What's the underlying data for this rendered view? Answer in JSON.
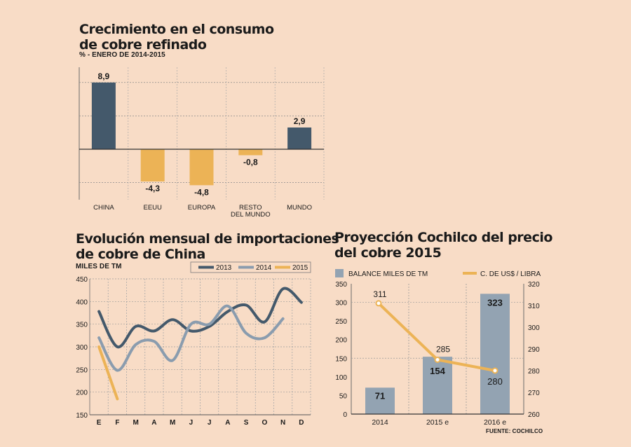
{
  "chart1": {
    "title_line1": "Crecimiento en el consumo",
    "title_line2": "de cobre refinado",
    "subtitle": "% - ENERO DE 2014-2015"
  },
  "chart2": {
    "title_line1": "Evolución mensual de importaciones",
    "title_line2": "de cobre de China",
    "ylabel": "MILES DE TM"
  },
  "chart3": {
    "title_line1": "Proyección Cochilco del precio",
    "title_line2": "del cobre 2015",
    "source": "FUENTE: COCHILCO"
  },
  "colors": {
    "dark": "#44596b",
    "mid": "#8a9cae",
    "orange": "#ecb356",
    "bar": "#93a3b2",
    "background": "#f8dcc6"
  },
  "chart_data": [
    {
      "type": "bar",
      "title": "Crecimiento en el consumo de cobre refinado",
      "subtitle": "% - ENERO DE 2014-2015",
      "categories": [
        "CHINA",
        "EEUU",
        "EUROPA",
        "RESTO DEL MUNDO",
        "MUNDO"
      ],
      "category_lines": [
        [
          "CHINA"
        ],
        [
          "EEUU"
        ],
        [
          "EUROPA"
        ],
        [
          "RESTO",
          "DEL MUNDO"
        ],
        [
          "MUNDO"
        ]
      ],
      "values": [
        8.9,
        -4.3,
        -4.8,
        -0.8,
        2.9
      ],
      "labels": [
        "8,9",
        "-4,3",
        "-4,8",
        "-0,8",
        "2,9"
      ],
      "ylim": [
        -6,
        10
      ]
    },
    {
      "type": "line",
      "title": "Evolución mensual de importaciones de cobre de China",
      "ylabel": "MILES DE TM",
      "categories": [
        "E",
        "F",
        "M",
        "A",
        "M",
        "J",
        "J",
        "A",
        "S",
        "O",
        "N",
        "D"
      ],
      "yticks": [
        150,
        200,
        250,
        300,
        350,
        400,
        450
      ],
      "ylim": [
        150,
        450
      ],
      "legend_position": "top-right",
      "series": [
        {
          "name": "2013",
          "color": "#44596b",
          "values": [
            378,
            300,
            345,
            335,
            360,
            335,
            345,
            378,
            392,
            355,
            428,
            398
          ]
        },
        {
          "name": "2014",
          "color": "#8a9cae",
          "values": [
            320,
            248,
            305,
            312,
            270,
            350,
            350,
            390,
            330,
            320,
            362,
            null
          ]
        },
        {
          "name": "2015",
          "color": "#ecb356",
          "values": [
            300,
            185,
            null,
            null,
            null,
            null,
            null,
            null,
            null,
            null,
            null,
            null
          ]
        }
      ]
    },
    {
      "type": "bar",
      "title": "Proyección Cochilco del precio del cobre 2015",
      "categories": [
        "2014",
        "2015 e",
        "2016 e"
      ],
      "legend_position": "top",
      "bar_series": {
        "name": "BALANCE MILES DE TM",
        "values": [
          71,
          154,
          323
        ],
        "labels": [
          "71",
          "154",
          "323"
        ]
      },
      "line_series": {
        "name": "C. DE US$ / LIBRA",
        "values": [
          311,
          285,
          280
        ],
        "labels": [
          "311",
          "285",
          "280"
        ]
      },
      "y_left": {
        "ticks": [
          0,
          50,
          100,
          150,
          200,
          250,
          300,
          350
        ],
        "ylim": [
          0,
          350
        ]
      },
      "y_right": {
        "ticks": [
          260,
          270,
          280,
          290,
          300,
          310,
          320
        ],
        "ylim": [
          260,
          320
        ]
      },
      "source": "FUENTE: COCHILCO"
    }
  ]
}
